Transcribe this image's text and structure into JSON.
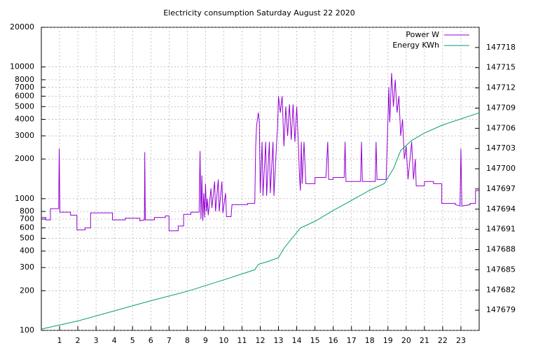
{
  "chart_data": {
    "type": "line",
    "title": "Electricity consumption Saturday August 22 2020",
    "xlim": [
      0,
      24
    ],
    "xticks": [
      1,
      2,
      3,
      4,
      5,
      6,
      7,
      8,
      9,
      10,
      11,
      12,
      13,
      14,
      15,
      16,
      17,
      18,
      19,
      20,
      21,
      22,
      23
    ],
    "ylim": [
      100,
      20000
    ],
    "yscale": "log",
    "yticks": [
      100,
      200,
      300,
      400,
      500,
      600,
      700,
      800,
      1000,
      2000,
      3000,
      4000,
      5000,
      6000,
      7000,
      8000,
      10000,
      20000
    ],
    "y2lim": [
      147676,
      147721
    ],
    "y2ticks": [
      147679,
      147682,
      147685,
      147688,
      147691,
      147694,
      147697,
      147700,
      147703,
      147706,
      147709,
      147712,
      147715,
      147718
    ],
    "grid": true,
    "legend": "top-right",
    "series": [
      {
        "name": "Power W",
        "color": "#9400d3",
        "x": [
          0,
          0.25,
          0.25,
          0.5,
          0.5,
          0.95,
          0.98,
          1.02,
          1.6,
          1.6,
          1.95,
          1.95,
          2.4,
          2.4,
          2.7,
          2.7,
          3.9,
          3.9,
          4.6,
          4.6,
          5.4,
          5.4,
          5.65,
          5.67,
          5.7,
          6.2,
          6.2,
          6.8,
          6.8,
          7.0,
          7.0,
          7.5,
          7.5,
          7.8,
          7.8,
          8.2,
          8.2,
          8.65,
          8.7,
          8.75,
          8.8,
          8.85,
          8.9,
          8.95,
          9.0,
          9.05,
          9.1,
          9.15,
          9.3,
          9.35,
          9.5,
          9.55,
          9.7,
          9.75,
          9.9,
          9.95,
          10.1,
          10.15,
          10.4,
          10.45,
          11.3,
          11.3,
          11.7,
          11.75,
          11.8,
          11.9,
          11.95,
          12.0,
          12.1,
          12.15,
          12.3,
          12.35,
          12.5,
          12.55,
          12.7,
          12.75,
          12.9,
          12.95,
          13.0,
          13.1,
          13.2,
          13.3,
          13.4,
          13.5,
          13.6,
          13.7,
          13.8,
          13.9,
          14.0,
          14.1,
          14.15,
          14.2,
          14.25,
          14.3,
          14.4,
          14.5,
          15.0,
          15.0,
          15.6,
          15.7,
          15.75,
          16.0,
          16.0,
          16.6,
          16.65,
          16.7,
          17.5,
          17.55,
          17.6,
          18.3,
          18.35,
          18.4,
          18.9,
          19.0,
          19.05,
          19.1,
          19.2,
          19.3,
          19.4,
          19.5,
          19.6,
          19.7,
          19.8,
          19.9,
          20.0,
          20.1,
          20.3,
          20.4,
          20.5,
          20.55,
          21.0,
          21.0,
          21.5,
          21.5,
          21.95,
          21.95,
          22.7,
          22.7,
          22.95,
          23.0,
          23.05,
          23.5,
          23.5,
          23.8,
          23.8,
          24
        ],
        "values": [
          720,
          720,
          690,
          690,
          840,
          840,
          2400,
          790,
          790,
          750,
          750,
          580,
          580,
          600,
          600,
          780,
          780,
          690,
          690,
          710,
          710,
          680,
          690,
          2250,
          690,
          690,
          720,
          720,
          740,
          740,
          570,
          570,
          620,
          620,
          760,
          760,
          790,
          790,
          2300,
          700,
          1500,
          680,
          1100,
          720,
          1300,
          800,
          1000,
          750,
          1200,
          850,
          1350,
          800,
          1400,
          800,
          1350,
          780,
          1100,
          730,
          730,
          900,
          900,
          920,
          920,
          2500,
          3600,
          4500,
          3800,
          1100,
          2700,
          1050,
          2700,
          1050,
          2700,
          1100,
          2700,
          1050,
          2700,
          3500,
          6000,
          4500,
          6000,
          2500,
          5000,
          3000,
          5200,
          2800,
          5200,
          2700,
          5000,
          2400,
          1500,
          1150,
          2700,
          1300,
          2700,
          1300,
          1300,
          1450,
          1450,
          2700,
          1400,
          1400,
          1450,
          1450,
          2700,
          1350,
          1350,
          2700,
          1350,
          1350,
          2700,
          1400,
          1400,
          4000,
          7000,
          3800,
          9000,
          5000,
          8000,
          4500,
          6000,
          3000,
          4000,
          2000,
          2500,
          1400,
          2700,
          1400,
          2000,
          1250,
          1250,
          1350,
          1350,
          1300,
          1300,
          920,
          920,
          900,
          880,
          2400,
          880,
          900,
          920,
          920,
          1150,
          1150
        ]
      },
      {
        "name": "Energy KWh",
        "color": "#009e73",
        "axis": "y2",
        "x": [
          0,
          2,
          4,
          6,
          8,
          10,
          11.7,
          11.9,
          12.5,
          13,
          13.3,
          14.2,
          15,
          16,
          17,
          18,
          18.8,
          19.3,
          19.7,
          20.3,
          21,
          22,
          23,
          24
        ],
        "values": [
          147676.2,
          147677.4,
          147678.9,
          147680.4,
          147681.8,
          147683.5,
          147685,
          147685.8,
          147686.3,
          147686.8,
          147688.2,
          147691.2,
          147692.2,
          147693.8,
          147695.3,
          147696.8,
          147697.8,
          147700,
          147702.7,
          147704.2,
          147705.3,
          147706.5,
          147707.4,
          147708.3
        ]
      }
    ]
  }
}
